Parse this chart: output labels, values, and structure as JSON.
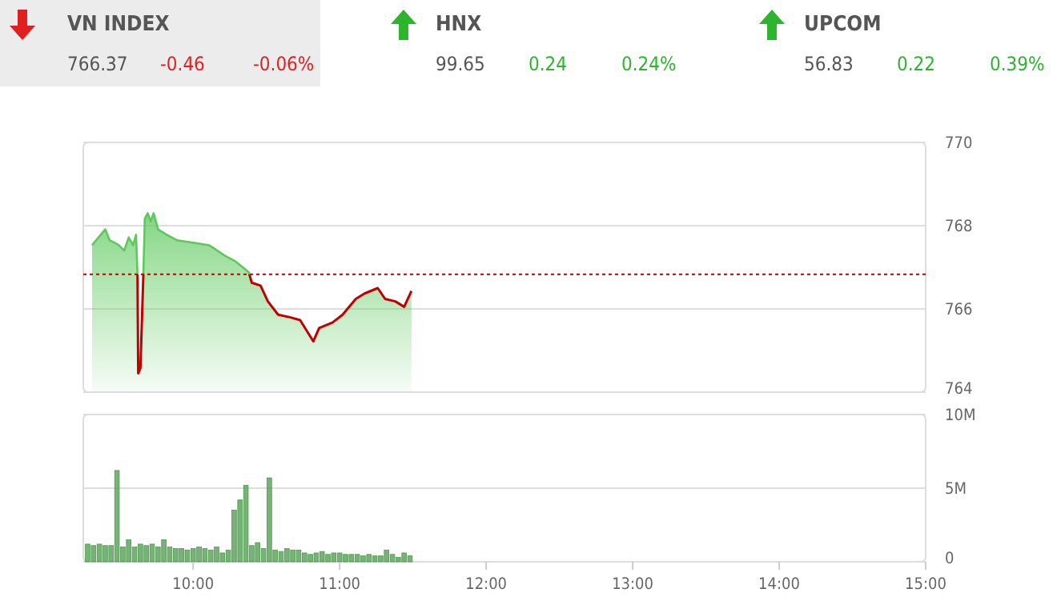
{
  "chart_data": [
    {
      "type": "other",
      "annotations": [
        "VN INDEX",
        "766.37",
        "-0.46",
        "-0.06%",
        "HNX",
        "99.65",
        "0.24",
        "0.24%",
        "UPCOM",
        "56.83",
        "0.22",
        "0.39%"
      ]
    },
    {
      "type": "line",
      "xlim": [
        9.25,
        15
      ],
      "ylim": [
        764,
        770
      ],
      "yticks": [
        764,
        766,
        768,
        770
      ],
      "tick_labels": "y",
      "grid": "y",
      "ref_lines": [
        {
          "axis": "y",
          "value": 766.83,
          "color": "#c00000",
          "line_style": "dotted"
        }
      ],
      "series": [
        {
          "type": "area",
          "color": "#5cc95c",
          "x": [
            9.31,
            9.4,
            9.43,
            9.49,
            9.53,
            9.56,
            9.59,
            9.61,
            9.62,
            9.625,
            9.64,
            9.66,
            9.67,
            9.69,
            9.71,
            9.73,
            9.76,
            9.82,
            9.89,
            10.0,
            10.11,
            10.22,
            10.29,
            10.38,
            10.4,
            10.46,
            10.51,
            10.58,
            10.66,
            10.73,
            10.82,
            10.86,
            10.95,
            11.02,
            11.11,
            11.17,
            11.26,
            11.31,
            11.38,
            11.44,
            11.49
          ],
          "values": [
            767.53,
            767.91,
            767.65,
            767.54,
            767.4,
            767.72,
            767.53,
            767.78,
            766.82,
            764.45,
            764.58,
            766.82,
            768.17,
            768.3,
            768.1,
            768.3,
            767.91,
            767.78,
            767.65,
            767.59,
            767.53,
            767.27,
            767.14,
            766.88,
            766.63,
            766.56,
            766.18,
            765.86,
            765.8,
            765.73,
            765.22,
            765.54,
            765.67,
            765.86,
            766.24,
            766.37,
            766.5,
            766.24,
            766.18,
            766.05,
            766.43
          ]
        }
      ]
    },
    {
      "type": "bar",
      "xlim": [
        9.25,
        15
      ],
      "xticks": [
        {
          "value": 10,
          "label": "10:00"
        },
        {
          "value": 11,
          "label": "11:00"
        },
        {
          "value": 12,
          "label": "12:00"
        },
        {
          "value": 13,
          "label": "13:00"
        },
        {
          "value": 14,
          "label": "14:00"
        },
        {
          "value": 15,
          "label": "15:00"
        }
      ],
      "ylim": [
        0,
        10
      ],
      "yticks": [
        0,
        {
          "value": 5,
          "label": "5M"
        },
        {
          "value": 10,
          "label": "10M"
        }
      ],
      "grid": "y",
      "color": "#4a9a4a",
      "x": [
        9.28,
        9.32,
        9.36,
        9.4,
        9.44,
        9.48,
        9.52,
        9.56,
        9.6,
        9.64,
        9.68,
        9.72,
        9.76,
        9.8,
        9.84,
        9.88,
        9.92,
        9.96,
        10.0,
        10.04,
        10.08,
        10.12,
        10.16,
        10.2,
        10.24,
        10.28,
        10.32,
        10.36,
        10.4,
        10.44,
        10.48,
        10.52,
        10.56,
        10.6,
        10.64,
        10.68,
        10.72,
        10.76,
        10.8,
        10.84,
        10.88,
        10.92,
        10.96,
        11.0,
        11.04,
        11.08,
        11.12,
        11.16,
        11.2,
        11.24,
        11.28,
        11.32,
        11.36,
        11.4,
        11.44,
        11.48
      ],
      "values": [
        1.2,
        1.1,
        1.2,
        1.1,
        1.1,
        6.2,
        1.0,
        1.5,
        1.0,
        1.2,
        1.1,
        1.2,
        1.0,
        1.5,
        1.0,
        0.9,
        0.9,
        0.8,
        0.9,
        1.0,
        0.9,
        0.8,
        1.0,
        0.6,
        0.8,
        3.5,
        4.2,
        5.2,
        1.1,
        1.3,
        0.9,
        5.7,
        0.8,
        0.7,
        0.9,
        0.8,
        0.8,
        0.6,
        0.5,
        0.6,
        0.7,
        0.5,
        0.6,
        0.6,
        0.5,
        0.5,
        0.5,
        0.4,
        0.5,
        0.4,
        0.4,
        0.8,
        0.5,
        0.3,
        0.6,
        0.4
      ]
    }
  ]
}
